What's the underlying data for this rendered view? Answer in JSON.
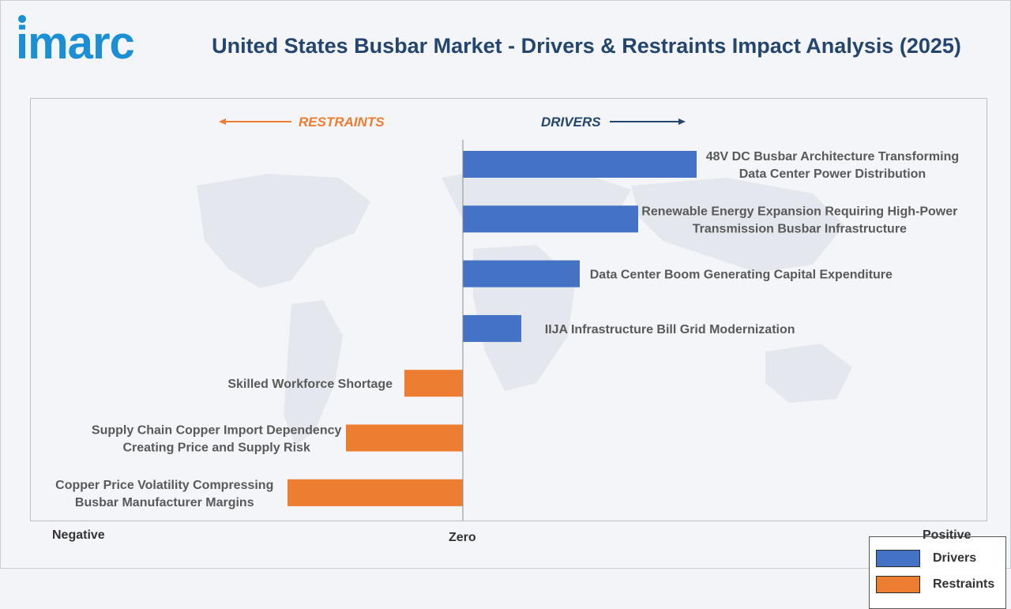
{
  "header": {
    "logo_text": "imarc",
    "title": "United States Busbar Market - Drivers & Restraints Impact Analysis (2025)"
  },
  "colors": {
    "drivers": "#4472c4",
    "restraints": "#ed7d31",
    "title": "#24466e",
    "logo": "#1a8fd6"
  },
  "chart_data": {
    "type": "bar",
    "orientation": "horizontal-diverging",
    "title": "United States Busbar Market - Drivers & Restraints Impact Analysis (2025)",
    "direction_labels": {
      "restraints": "RESTRAINTS",
      "drivers": "DRIVERS"
    },
    "axis_labels": {
      "negative": "Negative",
      "zero": "Zero",
      "positive": "Positive"
    },
    "xlim": [
      -5,
      5
    ],
    "grid": false,
    "legend_position": "bottom-right",
    "legend": [
      {
        "name": "Drivers",
        "color": "#4472c4"
      },
      {
        "name": "Restraints",
        "color": "#ed7d31"
      }
    ],
    "series": [
      {
        "name": "Drivers",
        "color": "#4472c4",
        "items": [
          {
            "label": "48V DC Busbar Architecture Transforming Data Center Power Distribution",
            "lines": [
              "48V DC Busbar Architecture Transforming",
              "Data Center Power Distribution"
            ],
            "value": 4.0
          },
          {
            "label": "Renewable Energy Expansion Requiring High-Power Transmission Busbar Infrastructure",
            "lines": [
              "Renewable Energy Expansion Requiring High-Power",
              "Transmission Busbar Infrastructure"
            ],
            "value": 3.0
          },
          {
            "label": "Data Center Boom Generating Capital Expenditure",
            "lines": [
              "Data Center Boom Generating Capital Expenditure"
            ],
            "value": 2.0
          },
          {
            "label": "IIJA Infrastructure Bill Grid Modernization",
            "lines": [
              "IIJA Infrastructure Bill Grid Modernization"
            ],
            "value": 1.0
          }
        ]
      },
      {
        "name": "Restraints",
        "color": "#ed7d31",
        "items": [
          {
            "label": "Skilled Workforce Shortage",
            "lines": [
              "Skilled Workforce Shortage"
            ],
            "value": -1.0
          },
          {
            "label": "Supply Chain Copper Import Dependency Creating Price and Supply Risk",
            "lines": [
              "Supply Chain Copper Import Dependency",
              "Creating Price and Supply Risk"
            ],
            "value": -2.0
          },
          {
            "label": "Copper Price Volatility Compressing Busbar Manufacturer Margins",
            "lines": [
              "Copper Price Volatility Compressing",
              "Busbar Manufacturer Margins"
            ],
            "value": -3.0
          }
        ]
      }
    ]
  }
}
